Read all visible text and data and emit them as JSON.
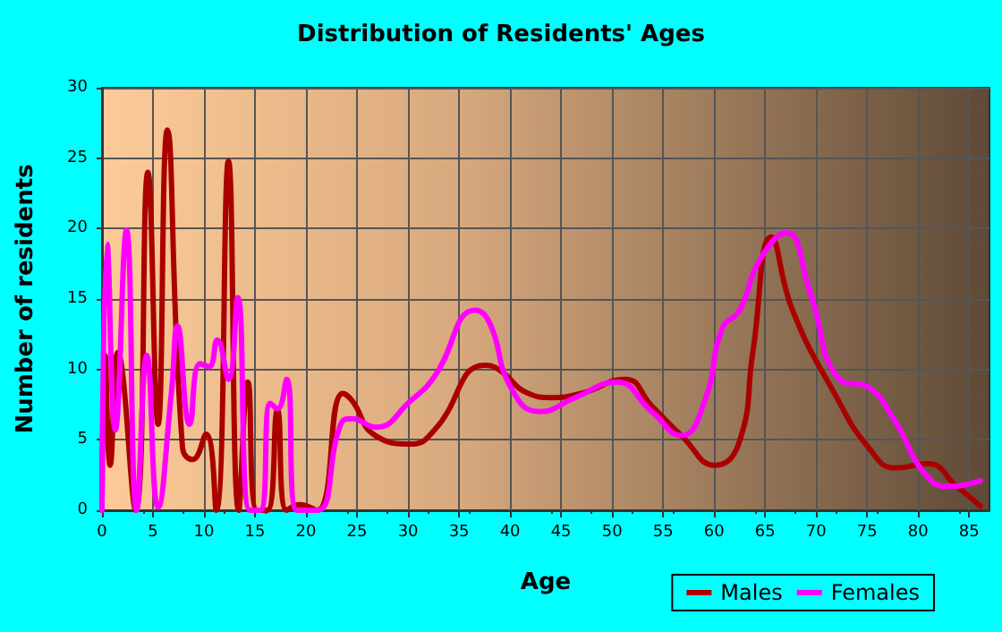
{
  "chart_data": {
    "type": "line",
    "title": "Distribution of Residents' Ages",
    "xlabel": "Age",
    "ylabel": "Number of residents",
    "xlim": [
      0,
      87
    ],
    "xticks": [
      0,
      5,
      10,
      15,
      20,
      25,
      30,
      35,
      40,
      45,
      50,
      55,
      60,
      65,
      70,
      75,
      80,
      85
    ],
    "ylim": [
      0,
      30
    ],
    "yticks": [
      0,
      5,
      10,
      15,
      20,
      25,
      30
    ],
    "grid": true,
    "legend": "bottom right",
    "marker": "none",
    "line_style": "solid",
    "series": [
      {
        "name": "Males",
        "color": "#aa0000",
        "x": [
          0,
          0.3,
          0.8,
          1.55,
          3.3,
          4.5,
          5.5,
          6.4,
          7.9,
          8.9,
          10.2,
          11.2,
          12.4,
          13.4,
          14.3,
          15.2,
          16.2,
          17.2,
          18.1,
          19.4,
          21.1,
          23.6,
          24.5,
          26.8,
          30.3,
          32.6,
          37.5,
          38.9,
          41.8,
          44.1,
          47,
          51.3,
          53.9,
          56.8,
          60.1,
          62.5,
          63.8,
          65.6,
          67.7,
          71.8,
          75.2,
          77.8,
          81,
          83.8,
          86.1
        ],
        "values": [
          0,
          11,
          3.2,
          11.2,
          0,
          24,
          6.1,
          27,
          4.4,
          3.6,
          5.4,
          0,
          24.8,
          0,
          9.1,
          0,
          0,
          7.1,
          0,
          0.4,
          0,
          8.3,
          7.8,
          5.3,
          4.7,
          5.7,
          10.3,
          10,
          8.3,
          8,
          8.3,
          9.3,
          7.4,
          5.3,
          3.2,
          4.9,
          11.2,
          19.4,
          14.2,
          8.3,
          4.4,
          3,
          3.3,
          1.7,
          0.3
        ]
      },
      {
        "name": "Females",
        "color": "#ff00ff",
        "x": [
          0,
          0.5,
          1.3,
          2.4,
          3.4,
          4.4,
          5.5,
          6.8,
          7.4,
          8.6,
          9.6,
          10.5,
          11.3,
          12.4,
          13.3,
          14.5,
          15.5,
          16.5,
          17.2,
          18.1,
          19.1,
          21.1,
          23.4,
          24.5,
          26.8,
          30.3,
          32.6,
          36.6,
          38,
          40.1,
          42.9,
          46.4,
          50.4,
          53.9,
          56.8,
          59.1,
          60.8,
          62.5,
          64.5,
          67.1,
          69.4,
          72.3,
          75.2,
          77.5,
          81,
          83.2,
          86.1
        ],
        "values": [
          0,
          18.9,
          5.7,
          19.9,
          0,
          11,
          0.2,
          8.3,
          13.1,
          6.1,
          10.4,
          10.2,
          12.1,
          9.3,
          15.1,
          0,
          0,
          7.6,
          7.2,
          9.3,
          0,
          0,
          6.1,
          6.5,
          5.9,
          7.8,
          9.5,
          14.2,
          13.3,
          8.7,
          7,
          8,
          9.1,
          7,
          5.3,
          7.8,
          12.9,
          14.2,
          17.8,
          19.7,
          15.5,
          9.3,
          8.7,
          6.6,
          2.3,
          1.7,
          2.1
        ]
      }
    ]
  }
}
